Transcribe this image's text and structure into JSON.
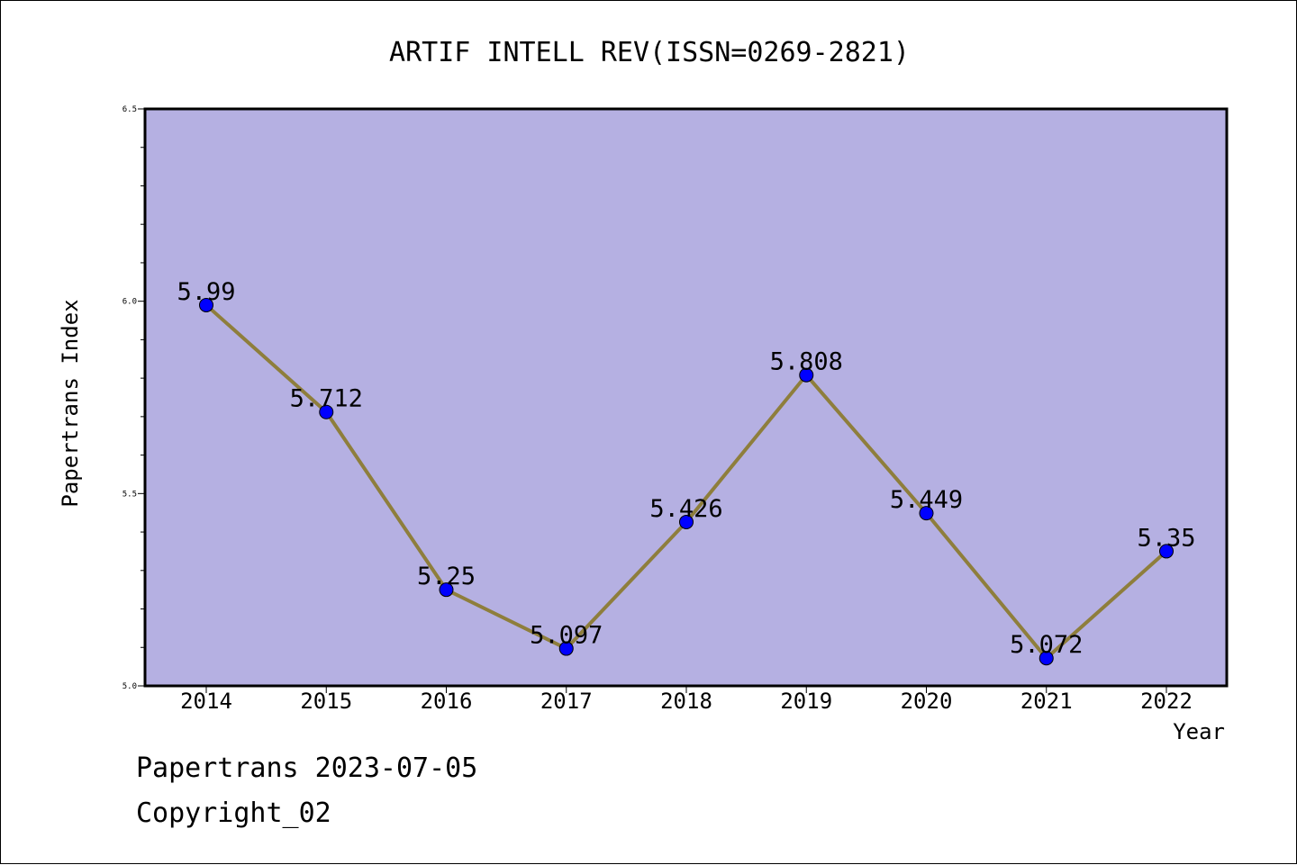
{
  "chart_data": {
    "type": "line",
    "title": "ARTIF INTELL REV(ISSN=0269-2821)",
    "xlabel": "Year",
    "ylabel": "Papertrans Index",
    "categories": [
      "2014",
      "2015",
      "2016",
      "2017",
      "2018",
      "2019",
      "2020",
      "2021",
      "2022"
    ],
    "series": [
      {
        "values": [
          5.99,
          5.712,
          5.25,
          5.097,
          5.426,
          5.808,
          5.449,
          5.072,
          5.35
        ],
        "data_labels": [
          "5.99",
          "5.712",
          "5.25",
          "5.097",
          "5.426",
          "5.808",
          "5.449",
          "5.072",
          "5.35"
        ]
      }
    ],
    "ylim": [
      5.0,
      6.5
    ],
    "y_ticks": [
      "5.0",
      "5.5",
      "6.0",
      "6.5"
    ],
    "y_minor_step": 0.1,
    "grid": false,
    "colors": {
      "plot_background": "#b5b0e2",
      "line": "#8e7e3c",
      "marker": "#0000ff"
    }
  },
  "footer": {
    "line1": "Papertrans 2023-07-05",
    "line2": "Copyright_02"
  }
}
